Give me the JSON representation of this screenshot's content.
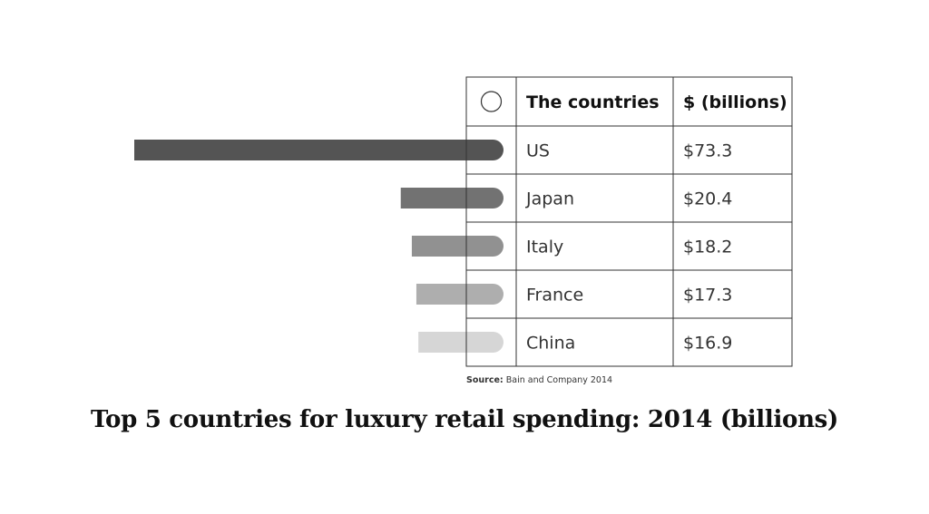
{
  "chart_data": {
    "type": "bar",
    "orientation": "horizontal",
    "title": "Top 5 countries for luxury retail spending: 2014 (billions)",
    "table_headers": {
      "countries": "The countries",
      "value": "$ (billions)"
    },
    "categories": [
      "US",
      "Japan",
      "Italy",
      "France",
      "China"
    ],
    "values": [
      73.3,
      20.4,
      18.2,
      17.3,
      16.9
    ],
    "value_labels": [
      "$73.3",
      "$20.4",
      "$18.2",
      "$17.3",
      "$16.9"
    ],
    "colors": [
      "#545454",
      "#727272",
      "#919191",
      "#aeaeae",
      "#d6d6d6"
    ],
    "source_label": "Source:",
    "source_text": "Bain and Company 2014"
  }
}
